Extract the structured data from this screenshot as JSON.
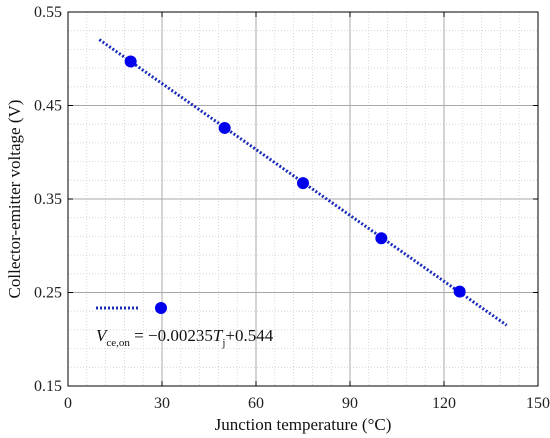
{
  "chart_data": {
    "type": "scatter",
    "title": "",
    "xlabel": "Junction temperature (°C)",
    "ylabel": "Collector-emitter voltage (V)",
    "xlim": [
      0,
      150
    ],
    "ylim": [
      0.15,
      0.55
    ],
    "xticks": [
      0,
      30,
      60,
      90,
      120,
      150
    ],
    "xtick_labels": [
      "0",
      "30",
      "60",
      "90",
      "120",
      "150"
    ],
    "yticks": [
      0.15,
      0.25,
      0.35,
      0.45,
      0.55
    ],
    "ytick_labels": [
      "0.15",
      "0.25",
      "0.35",
      "0.45",
      "0.55"
    ],
    "grid": true,
    "minor_grid": true,
    "series": [
      {
        "type": "scatter",
        "color": "#0000ee",
        "x": [
          20,
          50,
          75,
          100,
          125
        ],
        "y": [
          0.497,
          0.426,
          0.367,
          0.308,
          0.251
        ]
      },
      {
        "type": "line",
        "style": "dotted",
        "color": "#1a2db8",
        "x": [
          10,
          140
        ],
        "y": [
          0.5205,
          0.215
        ]
      }
    ],
    "legend": {
      "placement": "lower-left",
      "equation": {
        "v": "V",
        "v_sub": "ce,on",
        "mid": " = −0.00235",
        "t": "T",
        "t_sub": "j",
        "tail": "+0.544"
      }
    }
  }
}
